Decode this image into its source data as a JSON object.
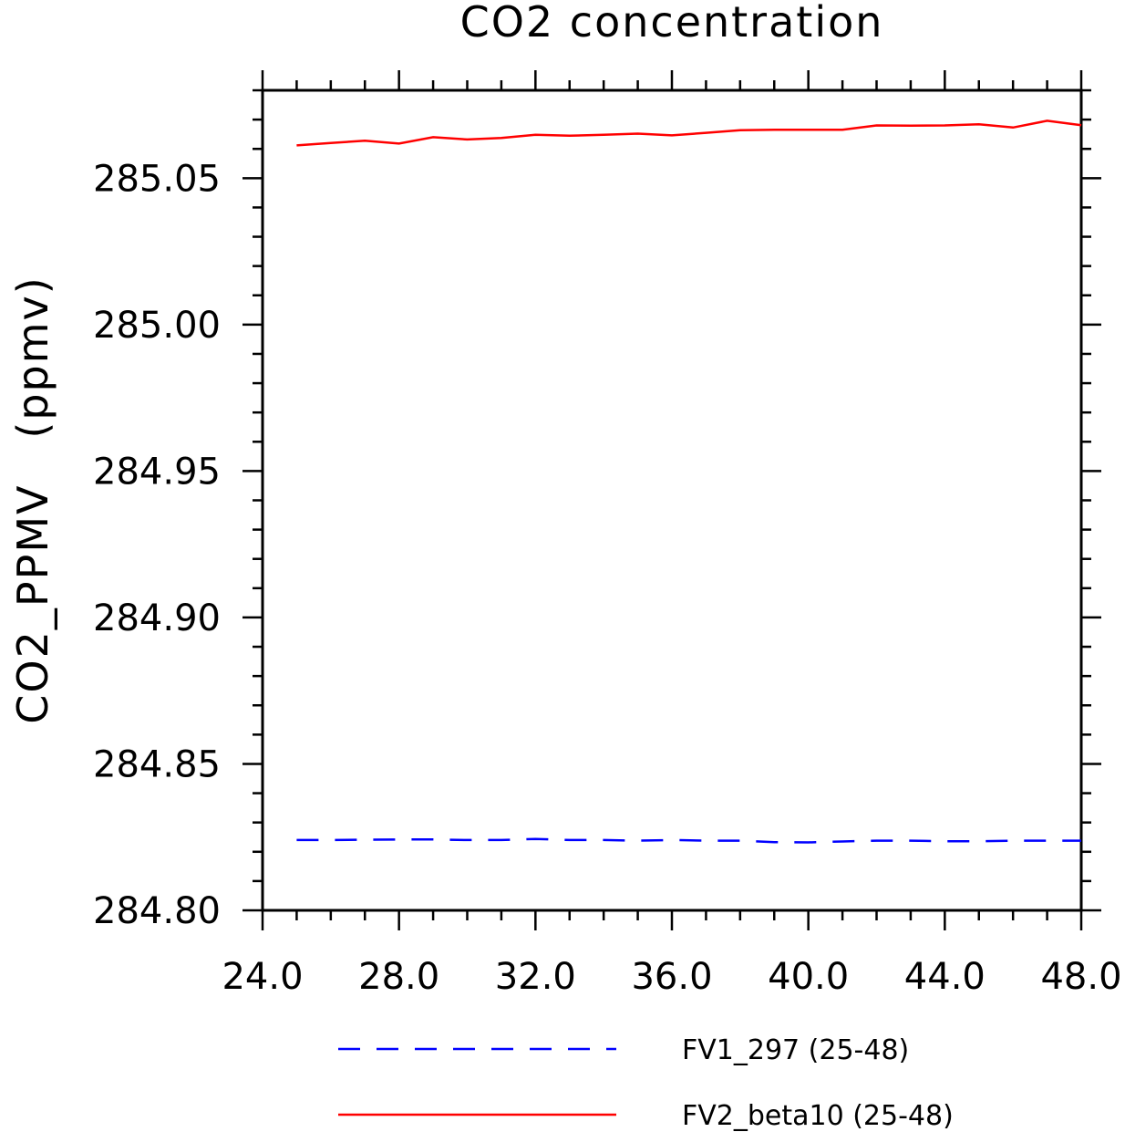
{
  "chart_data": {
    "type": "line",
    "title": "CO2 concentration",
    "xlabel": "",
    "ylabel": "CO2_PPMV   (ppmv)",
    "xlim": [
      24.0,
      48.0
    ],
    "ylim": [
      284.8,
      285.08
    ],
    "xticks": [
      24.0,
      28.0,
      32.0,
      36.0,
      40.0,
      44.0,
      48.0
    ],
    "xtick_labels": [
      "24.0",
      "28.0",
      "32.0",
      "36.0",
      "40.0",
      "44.0",
      "48.0"
    ],
    "yticks": [
      284.8,
      284.85,
      284.9,
      284.95,
      285.0,
      285.05
    ],
    "ytick_labels": [
      "284.80",
      "284.85",
      "284.90",
      "284.95",
      "285.00",
      "285.05"
    ],
    "x_minor_step": 1.0,
    "y_minor_step": 0.01,
    "legend_placement": "bottom",
    "series": [
      {
        "name": "FV1_297 (25-48)",
        "color": "#0000ff",
        "style": "dashed",
        "x": [
          25,
          26,
          27,
          28,
          29,
          30,
          31,
          32,
          33,
          34,
          35,
          36,
          37,
          38,
          39,
          40,
          41,
          42,
          43,
          44,
          45,
          46,
          47,
          48
        ],
        "values": [
          284.824,
          284.824,
          284.8241,
          284.8242,
          284.8242,
          284.824,
          284.824,
          284.8244,
          284.824,
          284.824,
          284.8238,
          284.824,
          284.8238,
          284.8238,
          284.8233,
          284.8232,
          284.8235,
          284.8238,
          284.8238,
          284.8236,
          284.8236,
          284.8238,
          284.8238,
          284.8238
        ]
      },
      {
        "name": "FV2_beta10 (25-48)",
        "color": "#ff0000",
        "style": "solid",
        "x": [
          25,
          26,
          27,
          28,
          29,
          30,
          31,
          32,
          33,
          34,
          35,
          36,
          37,
          38,
          39,
          40,
          41,
          42,
          43,
          44,
          45,
          46,
          47,
          48
        ],
        "values": [
          285.0612,
          285.062,
          285.0628,
          285.0618,
          285.064,
          285.0632,
          285.0637,
          285.0648,
          285.0645,
          285.0648,
          285.0652,
          285.0646,
          285.0655,
          285.0664,
          285.0665,
          285.0665,
          285.0665,
          285.068,
          285.0679,
          285.068,
          285.0684,
          285.0673,
          285.0696,
          285.0681
        ]
      }
    ]
  }
}
